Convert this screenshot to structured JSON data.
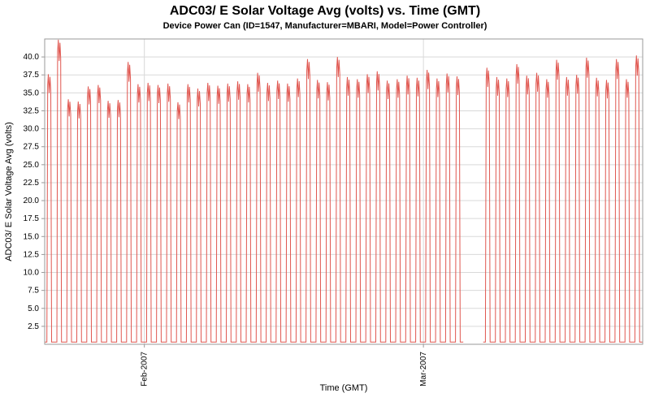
{
  "chart_data": {
    "type": "line",
    "title": "ADC03/ E Solar Voltage Avg (volts) vs. Time (GMT)",
    "subtitle": "Device Power Can (ID=1547, Manufacturer=MBARI, Model=Power Controller)",
    "xlabel": "Time (GMT)",
    "ylabel": "ADC03/ E Solar Voltage Avg (volts)",
    "legend": "none",
    "grid": true,
    "ylim": [
      0,
      42.5
    ],
    "y_ticks": [
      2.5,
      5.0,
      7.5,
      10.0,
      12.5,
      15.0,
      17.5,
      20.0,
      22.5,
      25.0,
      27.5,
      30.0,
      32.5,
      35.0,
      37.5,
      40.0
    ],
    "x_start_date": "2007-01-22",
    "days": 60,
    "x_ticks": [
      {
        "label": "Feb-2007",
        "day_index": 10
      },
      {
        "label": "Mar-2007",
        "day_index": 38
      }
    ],
    "series": [
      {
        "name": "ADC03/ E Solar Voltage Avg",
        "color": "#e0564f",
        "night_value": 0.3,
        "daily_peaks": [
          37.6,
          42.4,
          34.1,
          33.8,
          35.9,
          36.1,
          33.9,
          34.0,
          39.3,
          36.2,
          36.4,
          36.1,
          36.3,
          33.7,
          36.2,
          35.6,
          36.4,
          36.0,
          36.3,
          36.6,
          36.2,
          37.8,
          36.4,
          36.7,
          36.3,
          37.0,
          39.7,
          36.8,
          36.5,
          40.0,
          37.2,
          36.9,
          37.6,
          38.0,
          36.7,
          36.9,
          37.4,
          37.1,
          38.2,
          37.0,
          37.7,
          37.3,
          null,
          null,
          38.5,
          37.2,
          37.0,
          39.0,
          37.4,
          37.8,
          36.9,
          39.6,
          37.2,
          37.5,
          39.9,
          37.1,
          36.8,
          39.7,
          36.9,
          40.2
        ]
      }
    ],
    "colors": {
      "grid": "#d9d9d9",
      "plot_border": "#9a9a9a",
      "tick_text": "#000000",
      "background": "#ffffff"
    }
  }
}
